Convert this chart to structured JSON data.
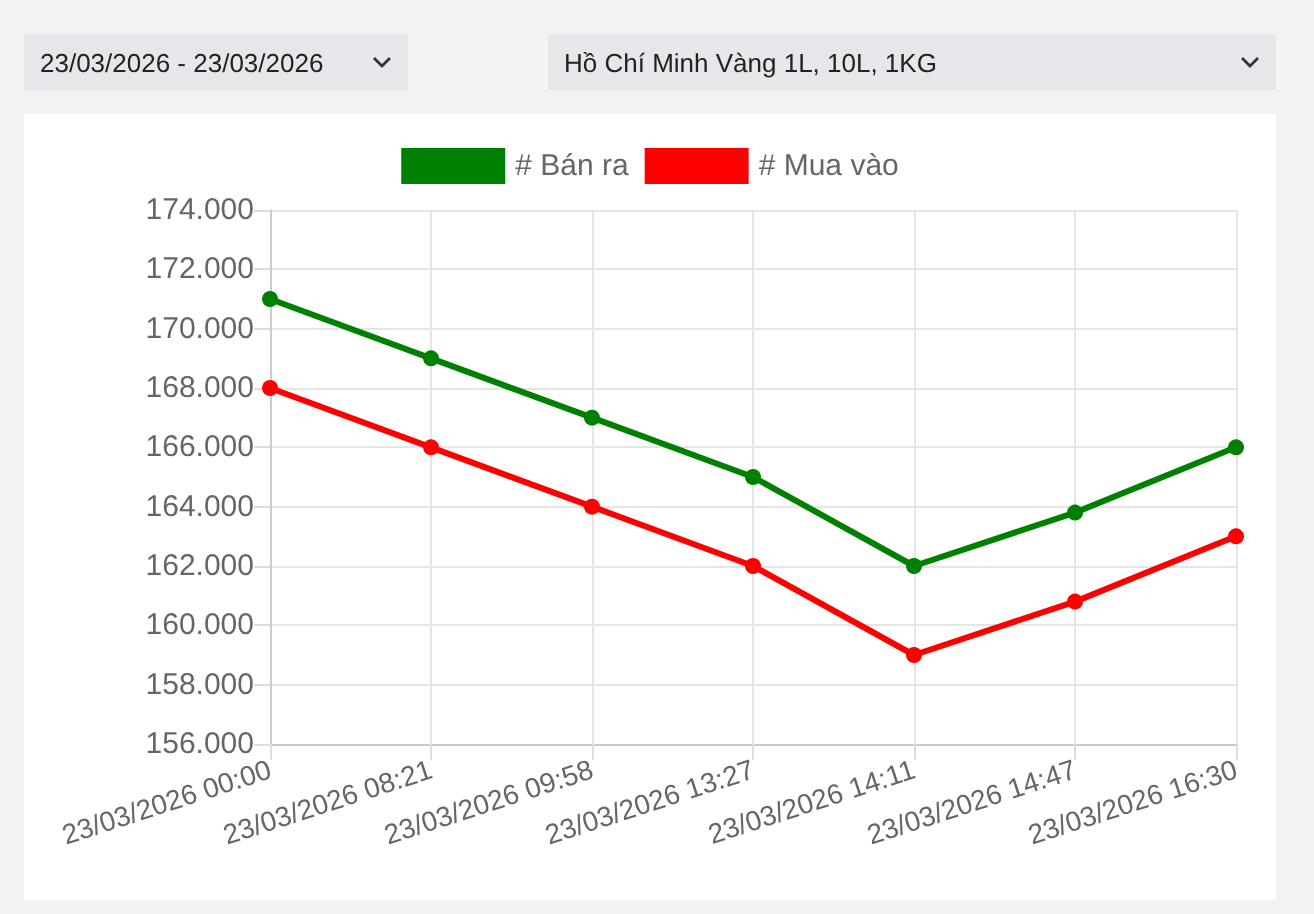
{
  "chart_data": {
    "type": "line",
    "annotations": [
      "23/03/2026 - 23/03/2026",
      "Hồ Chí Minh Vàng 1L, 10L, 1KG"
    ],
    "categories": [
      "23/03/2026 00:00",
      "23/03/2026 08:21",
      "23/03/2026 09:58",
      "23/03/2026 13:27",
      "23/03/2026 14:11",
      "23/03/2026 14:47",
      "23/03/2026 16:30"
    ],
    "series": [
      {
        "name": "# Bán ra",
        "color": "#008000",
        "values": [
          171000,
          169000,
          167000,
          165000,
          162000,
          163800,
          166000
        ]
      },
      {
        "name": "# Mua vào",
        "color": "#ff0000",
        "values": [
          168000,
          166000,
          164000,
          162000,
          159000,
          160800,
          163000
        ]
      }
    ],
    "ylim": [
      156000,
      174000
    ],
    "yticks": [
      {
        "value": 156000,
        "label": "156.000"
      },
      {
        "value": 158000,
        "label": "158.000"
      },
      {
        "value": 160000,
        "label": "160.000"
      },
      {
        "value": 162000,
        "label": "162.000"
      },
      {
        "value": 164000,
        "label": "164.000"
      },
      {
        "value": 166000,
        "label": "166.000"
      },
      {
        "value": 168000,
        "label": "168.000"
      },
      {
        "value": 170000,
        "label": "170.000"
      },
      {
        "value": 172000,
        "label": "172.000"
      },
      {
        "value": 174000,
        "label": "174.000"
      }
    ],
    "grid": true,
    "legend": "top",
    "marker": "circle",
    "line_style": "solid"
  }
}
